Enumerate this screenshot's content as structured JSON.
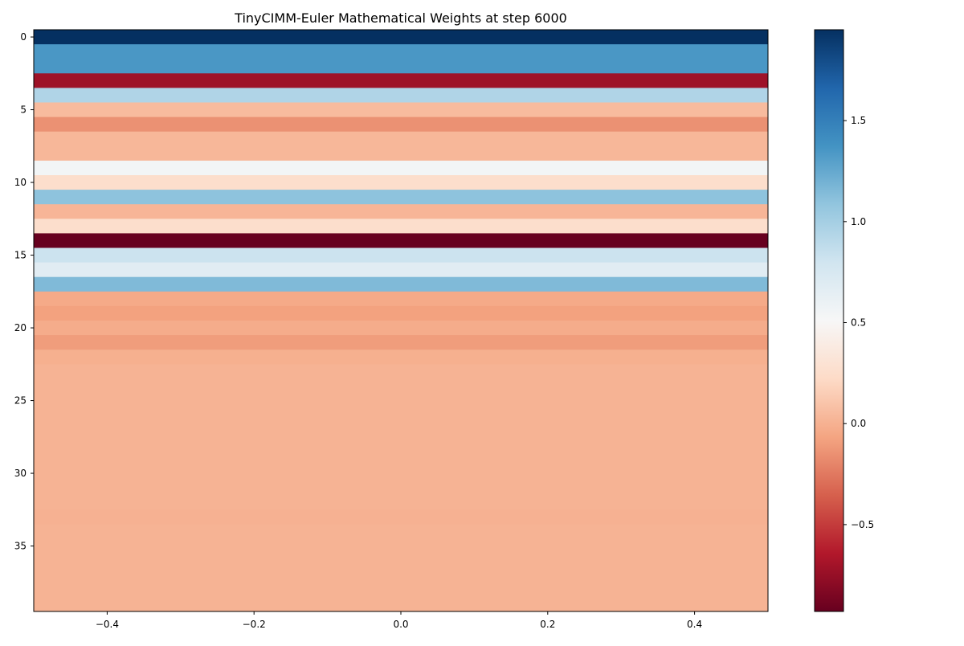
{
  "chart_data": {
    "type": "heatmap",
    "title": "TinyCIMM-Euler Mathematical Weights at step 6000",
    "xlabel": "",
    "ylabel": "",
    "xlim": [
      -0.5,
      0.5
    ],
    "ylim": [
      39.5,
      -0.5
    ],
    "x_ticks": [
      -0.4,
      -0.2,
      0.0,
      0.2,
      0.4
    ],
    "x_tick_labels": [
      "−0.4",
      "−0.2",
      "0.0",
      "0.2",
      "0.4"
    ],
    "y_ticks": [
      0,
      5,
      10,
      15,
      20,
      25,
      30,
      35
    ],
    "y_tick_labels": [
      "0",
      "5",
      "10",
      "15",
      "20",
      "25",
      "30",
      "35"
    ],
    "colormap": "RdBu",
    "vmin": -0.93,
    "vmax": 1.95,
    "colorbar_ticks": [
      -0.5,
      0.0,
      0.5,
      1.0,
      1.5
    ],
    "colorbar_tick_labels": [
      "−0.5",
      "0.0",
      "0.5",
      "1.0",
      "1.5"
    ],
    "grid": false,
    "values": [
      1.95,
      1.35,
      1.35,
      -0.72,
      0.95,
      0.05,
      -0.15,
      0.03,
      0.03,
      0.55,
      0.25,
      1.1,
      0.02,
      0.25,
      -0.93,
      0.82,
      0.68,
      1.15,
      -0.04,
      -0.08,
      -0.03,
      -0.1,
      -0.01,
      0.01,
      0.01,
      0.01,
      0.01,
      0.01,
      0.01,
      0.01,
      0.01,
      0.01,
      0.01,
      0.0,
      0.01,
      0.01,
      0.01,
      0.01,
      0.01,
      0.01
    ]
  }
}
